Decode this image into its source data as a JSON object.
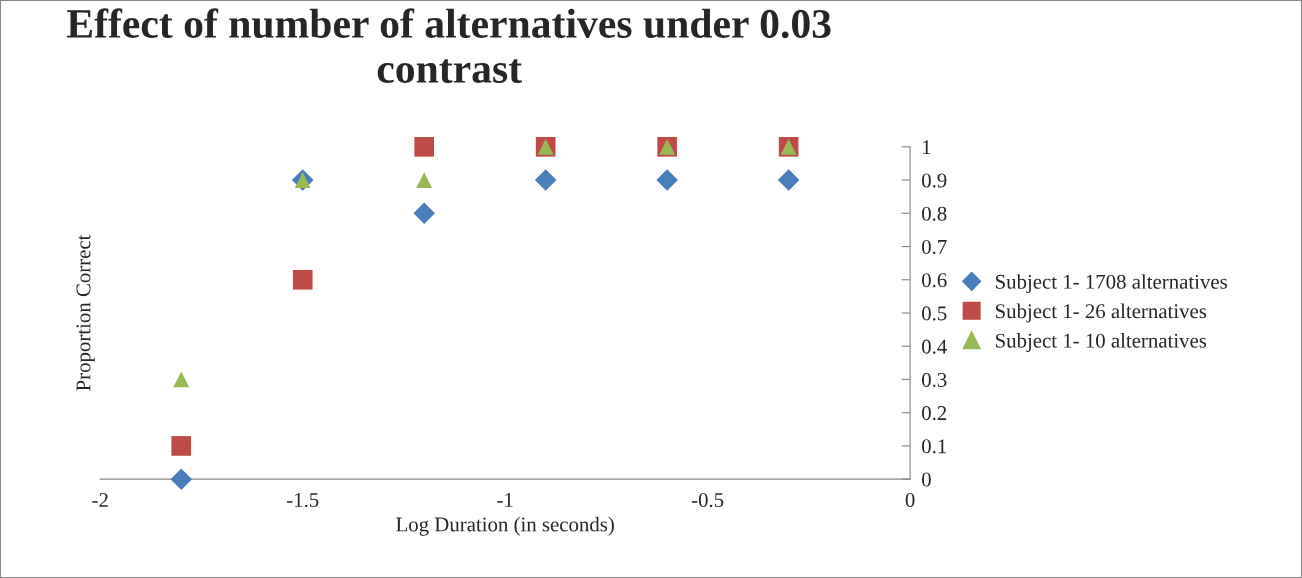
{
  "chart_data": {
    "type": "scatter",
    "title": "Effect of number of alternatives under 0.03 contrast",
    "xlabel": "Log Duration (in seconds)",
    "ylabel": "Proportion Correct",
    "series": [
      {
        "name": "Subject 1- 1708 alternatives",
        "color": "#4a7ebb",
        "marker": "diamond",
        "x": [
          -1.8,
          -1.5,
          -1.2,
          -0.9,
          -0.6,
          -0.3
        ],
        "values": [
          0,
          0.9,
          0.8,
          0.9,
          0.9,
          0.9
        ]
      },
      {
        "name": "Subject 1- 26 alternatives",
        "color": "#be4b48",
        "marker": "square",
        "x": [
          -1.8,
          -1.5,
          -1.2,
          -0.9,
          -0.6,
          -0.3
        ],
        "values": [
          0.1,
          0.6,
          1,
          1,
          1,
          1
        ]
      },
      {
        "name": "Subject 1- 10 alternatives",
        "color": "#98b954",
        "marker": "triangle",
        "x": [
          -1.8,
          -1.5,
          -1.2,
          -0.9,
          -0.6,
          -0.3
        ],
        "values": [
          0.3,
          0.9,
          0.9,
          1,
          1,
          1
        ]
      }
    ],
    "xlim": [
      -2,
      0
    ],
    "xticks": [
      -2,
      -1.5,
      -1,
      -0.5,
      0
    ],
    "ylim": [
      0,
      1
    ],
    "yticks": [
      0,
      0.1,
      0.2,
      0.3,
      0.4,
      0.5,
      0.6,
      0.7,
      0.8,
      0.9,
      1
    ],
    "grid": false,
    "legend": "right"
  }
}
